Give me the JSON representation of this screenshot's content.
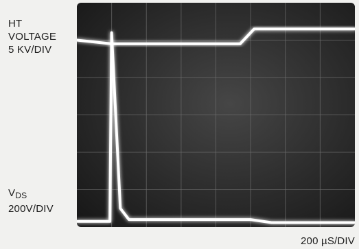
{
  "chart_data": {
    "type": "line",
    "title": "",
    "xlabel": "200 µS/DIV",
    "grid": true,
    "grid_divisions": {
      "x": 8,
      "y": 6
    },
    "channels": [
      {
        "name_lines": [
          "HT",
          "VOLTAGE",
          "5 KV/DIV"
        ],
        "x_div": [
          0,
          1.0,
          4.7,
          5.1,
          8
        ],
        "y_div": [
          5.0,
          4.9,
          4.9,
          5.3,
          5.3
        ]
      },
      {
        "name_main": "V",
        "name_sub": "DS",
        "scale": "200V/DIV",
        "x_div": [
          0,
          0.95,
          1.0,
          1.25,
          1.5,
          5.0,
          5.6,
          8
        ],
        "y_div": [
          0.15,
          0.15,
          5.2,
          0.5,
          0.2,
          0.2,
          0.12,
          0.12
        ]
      }
    ],
    "colors": {
      "trace": "#ffffff",
      "grid": "#6e6e6e",
      "screen": "#2b2b2b"
    }
  }
}
